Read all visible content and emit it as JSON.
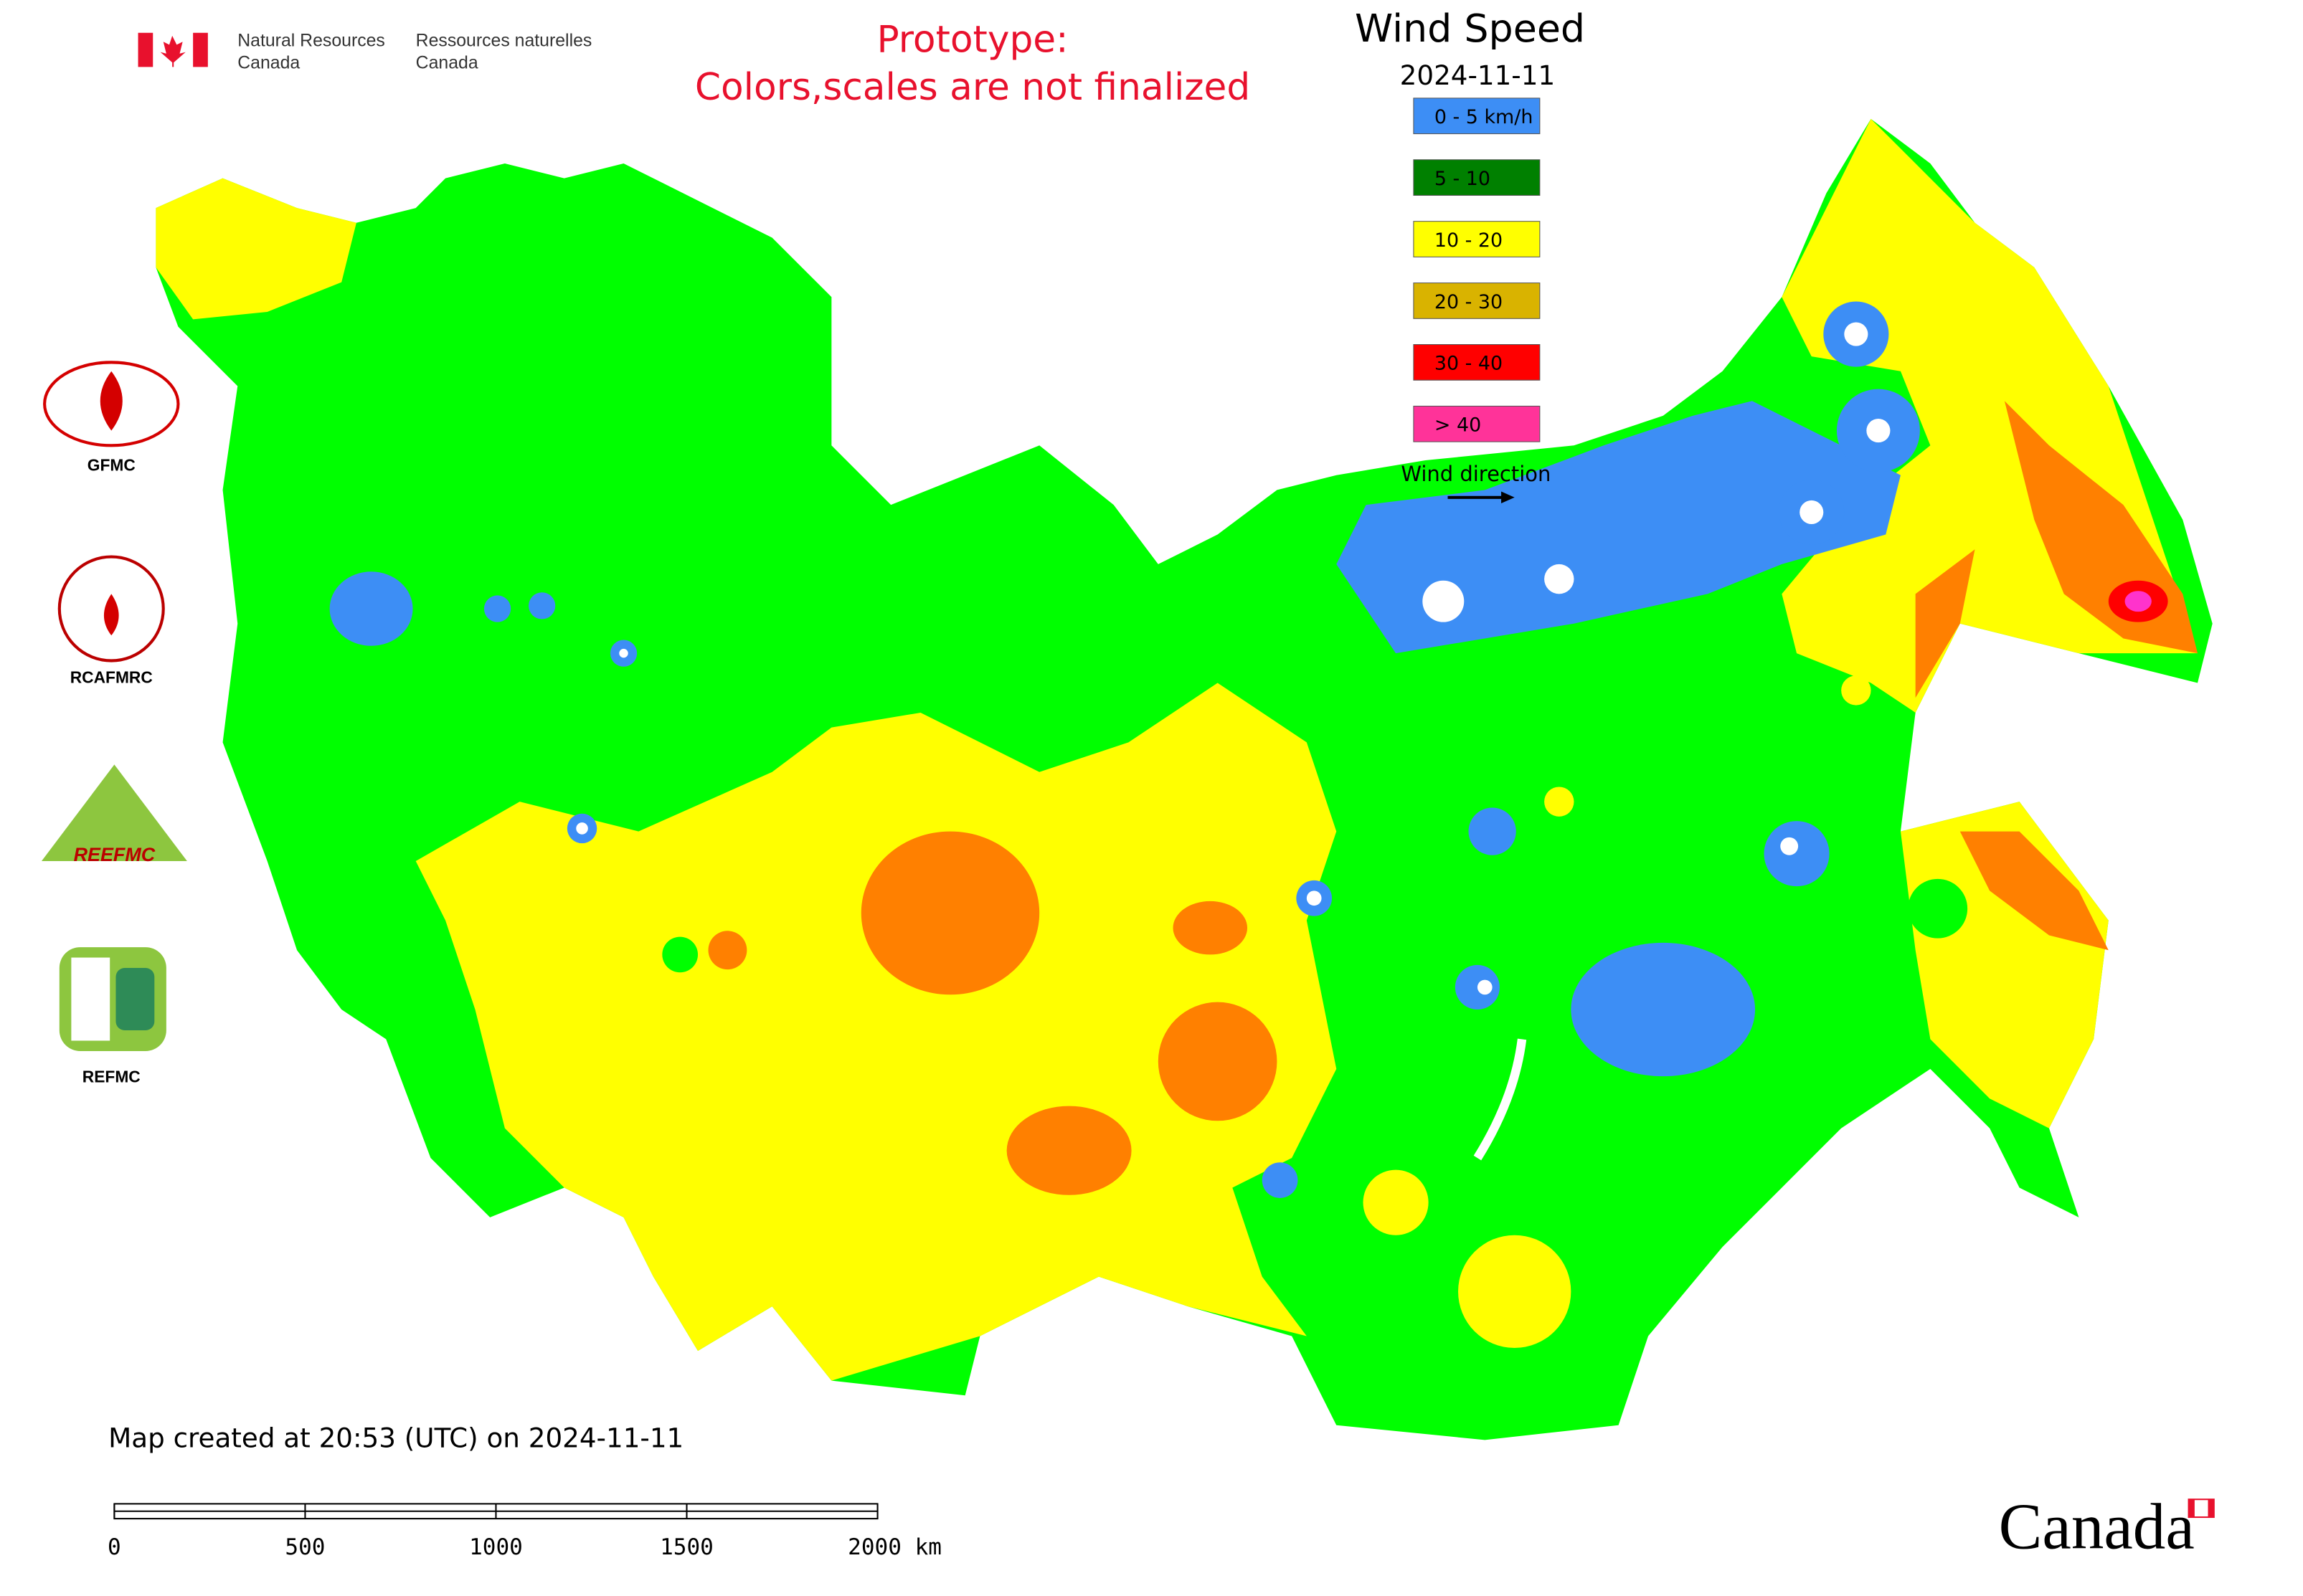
{
  "header": {
    "agency_en": [
      "Natural Resources",
      "Canada"
    ],
    "agency_fr": [
      "Ressources naturelles",
      "Canada"
    ],
    "notice": [
      "Prototype:",
      "Colors,scales are not finalized"
    ]
  },
  "legend": {
    "title": "Wind Speed",
    "date": "2024-11-11",
    "items": [
      {
        "label": "0 - 5 km/h",
        "color": "#3d8ef5"
      },
      {
        "label": "5 - 10",
        "color": "#008000"
      },
      {
        "label": "10 - 20",
        "color": "#ffff00"
      },
      {
        "label": "20 - 30",
        "color": "#d9b300"
      },
      {
        "label": "30 - 40",
        "color": "#ff0000"
      },
      {
        "label": "> 40",
        "color": "#ff3399"
      }
    ],
    "wind_direction": "Wind direction"
  },
  "logos": {
    "gfmc": "GFMC",
    "rcafmrc": "RCAFMRC",
    "reefmc": "REEFMC",
    "refmc": "REFMC"
  },
  "footer": {
    "created": "Map created at 20:53 (UTC) on 2024-11-11",
    "scale_ticks": [
      0,
      500,
      1000,
      1500,
      {
        "value": 2000,
        "label": "2000 km"
      }
    ]
  },
  "wordmark": "Canada"
}
